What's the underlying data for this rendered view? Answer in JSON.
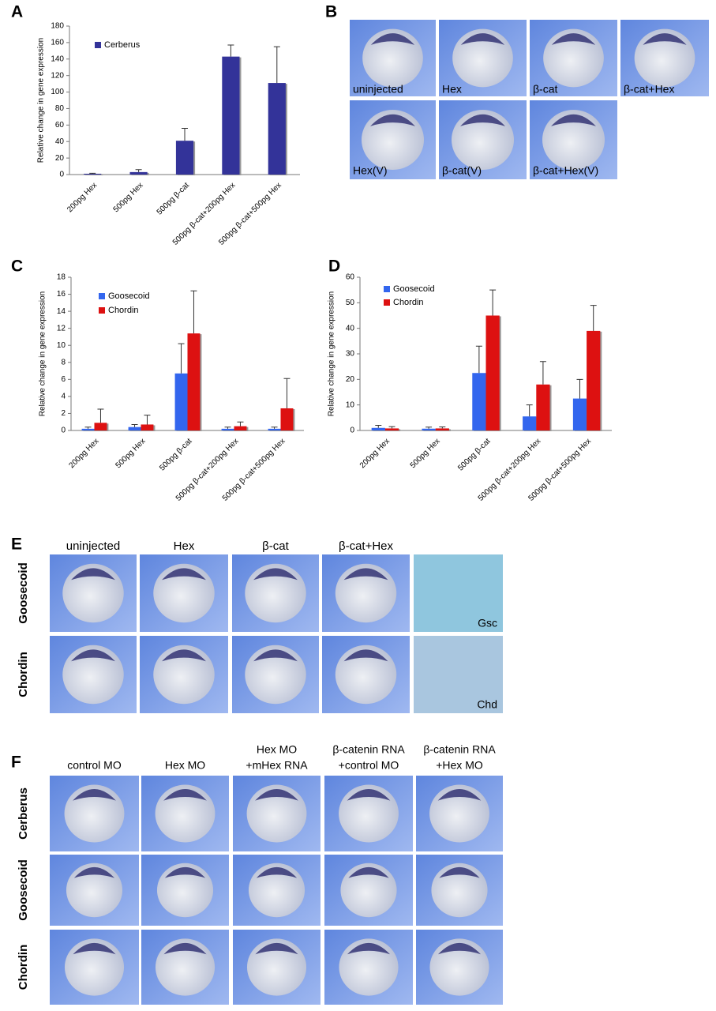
{
  "panel_labels": [
    "A",
    "B",
    "C",
    "D",
    "E",
    "F"
  ],
  "chart_data": [
    {
      "type": "bar",
      "ylabel": "Relative change in gene expression",
      "categories": [
        "200pg Hex",
        "500pg Hex",
        "500pg β-cat",
        "500pg β-cat+200pg Hex",
        "500pg β-cat+500pg Hex"
      ],
      "series": [
        {
          "name": "Cerberus",
          "color": "#333399",
          "values": [
            1,
            3,
            41,
            143,
            111
          ],
          "errors": [
            0.5,
            3,
            15,
            14,
            44
          ]
        }
      ],
      "ylim": [
        0,
        180
      ],
      "yticks": [
        0,
        20,
        40,
        60,
        80,
        100,
        120,
        140,
        160,
        180
      ]
    },
    {
      "type": "bar",
      "ylabel": "Relative change in gene expression",
      "categories": [
        "200pg Hex",
        "500pg Hex",
        "500pg β-cat",
        "500pg β-cat+200pg Hex",
        "500pg β-cat+500pg Hex"
      ],
      "series": [
        {
          "name": "Goosecoid",
          "color": "#3366ee",
          "values": [
            0.2,
            0.4,
            6.7,
            0.2,
            0.2
          ],
          "errors": [
            0.2,
            0.3,
            3.5,
            0.2,
            0.2
          ]
        },
        {
          "name": "Chordin",
          "color": "#dd1111",
          "values": [
            0.9,
            0.7,
            11.4,
            0.5,
            2.6
          ],
          "errors": [
            1.6,
            1.1,
            5,
            0.5,
            3.5
          ]
        }
      ],
      "ylim": [
        0,
        18
      ],
      "yticks": [
        0,
        2,
        4,
        6,
        8,
        10,
        12,
        14,
        16,
        18
      ]
    },
    {
      "type": "bar",
      "ylabel": "Relative change in gene expression",
      "categories": [
        "200pg Hex",
        "500pg Hex",
        "500pg β-cat",
        "500pg β-cat+200pg Hex",
        "500pg β-cat+500pg Hex"
      ],
      "series": [
        {
          "name": "Goosecoid",
          "color": "#3366ee",
          "values": [
            1,
            0.7,
            22.5,
            5.5,
            12.5
          ],
          "errors": [
            1,
            0.6,
            10.5,
            4.5,
            7.5
          ]
        },
        {
          "name": "Chordin",
          "color": "#dd1111",
          "values": [
            0.8,
            0.8,
            45,
            18,
            39
          ],
          "errors": [
            0.7,
            0.6,
            10,
            9,
            10
          ]
        }
      ],
      "ylim": [
        0,
        60
      ],
      "yticks": [
        0,
        10,
        20,
        30,
        40,
        50,
        60
      ]
    }
  ],
  "panel_b": {
    "labels": [
      "uninjected",
      "Hex",
      "β-cat",
      "β-cat+Hex",
      "Hex(V)",
      "β-cat(V)",
      "β-cat+Hex(V)"
    ]
  },
  "panel_e": {
    "columns": [
      "uninjected",
      "Hex",
      "β-cat",
      "β-cat+Hex"
    ],
    "rows": [
      "Goosecoid",
      "Chordin"
    ],
    "insets": [
      "Gsc",
      "Chd"
    ]
  },
  "panel_f": {
    "columns": [
      [
        "control MO"
      ],
      [
        "Hex MO"
      ],
      [
        "Hex MO",
        "+mHex RNA"
      ],
      [
        "β-catenin RNA",
        "+control MO"
      ],
      [
        "β-catenin RNA",
        "+Hex MO"
      ]
    ],
    "rows": [
      "Cerberus",
      "Goosecoid",
      "Chordin"
    ]
  }
}
